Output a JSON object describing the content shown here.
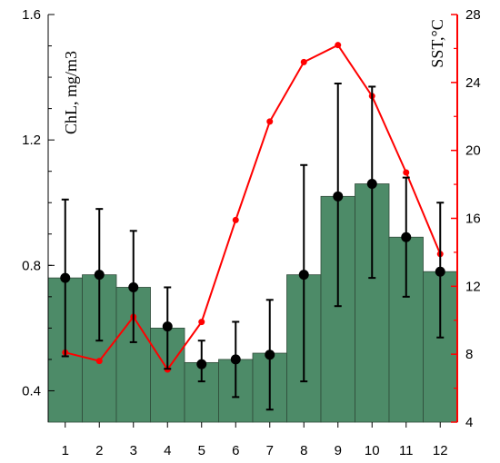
{
  "chart_data": {
    "type": "bar",
    "categories": [
      "1",
      "2",
      "3",
      "4",
      "5",
      "6",
      "7",
      "8",
      "9",
      "10",
      "11",
      "12"
    ],
    "left_axis": {
      "label": "ChL, mg/m3",
      "ylim": [
        0.3,
        1.6
      ],
      "ticks": [
        0.4,
        0.8,
        1.2,
        1.6
      ],
      "tick_labels": [
        "0.4",
        "0.8",
        "1.2",
        "1.6"
      ]
    },
    "right_axis": {
      "label": "SST,°C",
      "ylim": [
        4,
        28
      ],
      "ticks": [
        4,
        8,
        12,
        16,
        20,
        24,
        28
      ],
      "tick_labels": [
        "4",
        "8",
        "12",
        "16",
        "20",
        "24",
        "28"
      ],
      "color": "#ff0000"
    },
    "series": [
      {
        "kind": "bar",
        "axis": "left",
        "color": "#4d8b68",
        "values": [
          0.76,
          0.77,
          0.73,
          0.6,
          0.49,
          0.5,
          0.52,
          0.77,
          1.02,
          1.06,
          0.89,
          0.78
        ]
      },
      {
        "kind": "points-with-error",
        "axis": "left",
        "color": "#000000",
        "values": [
          0.76,
          0.77,
          0.73,
          0.605,
          0.485,
          0.5,
          0.515,
          0.77,
          1.02,
          1.06,
          0.89,
          0.78
        ],
        "upper": [
          1.01,
          0.98,
          0.91,
          0.73,
          0.56,
          0.62,
          0.69,
          1.12,
          1.38,
          1.37,
          1.08,
          1.0
        ],
        "lower": [
          0.51,
          0.56,
          0.555,
          0.47,
          0.43,
          0.38,
          0.34,
          0.43,
          0.67,
          0.76,
          0.7,
          0.57
        ]
      },
      {
        "kind": "line",
        "axis": "right",
        "color": "#ff0000",
        "values": [
          8.1,
          7.6,
          10.2,
          7.1,
          9.9,
          15.9,
          21.7,
          25.2,
          26.2,
          23.2,
          18.7,
          13.9
        ]
      }
    ],
    "grid": false
  }
}
